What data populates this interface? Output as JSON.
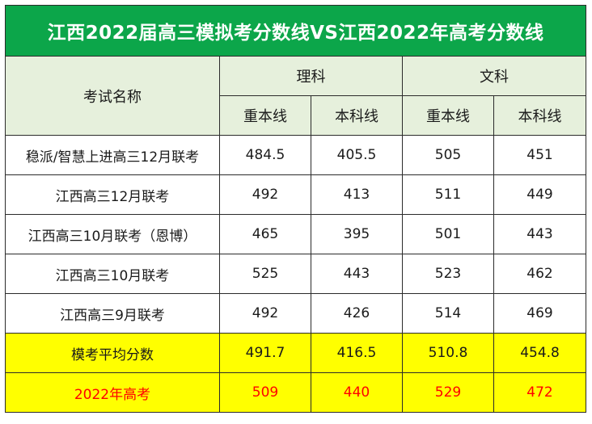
{
  "title": "江西2022届高三模拟考分数线VS江西2022年高考分数线",
  "header": {
    "exam_name": "考试名称",
    "science": "理科",
    "liberal_arts": "文科",
    "tier1": "重本线",
    "tier2": "本科线"
  },
  "rows": [
    {
      "name": "稳派/智慧上进高三12月联考",
      "sci_tier1": "484.5",
      "sci_tier2": "405.5",
      "lib_tier1": "505",
      "lib_tier2": "451"
    },
    {
      "name": "江西高三12月联考",
      "sci_tier1": "492",
      "sci_tier2": "413",
      "lib_tier1": "511",
      "lib_tier2": "449"
    },
    {
      "name": "江西高三10月联考（恩博）",
      "sci_tier1": "465",
      "sci_tier2": "395",
      "lib_tier1": "501",
      "lib_tier2": "443"
    },
    {
      "name": "江西高三10月联考",
      "sci_tier1": "525",
      "sci_tier2": "443",
      "lib_tier1": "523",
      "lib_tier2": "462"
    },
    {
      "name": "江西高三9月联考",
      "sci_tier1": "492",
      "sci_tier2": "426",
      "lib_tier1": "514",
      "lib_tier2": "469"
    }
  ],
  "average": {
    "name": "模考平均分数",
    "sci_tier1": "491.7",
    "sci_tier2": "416.5",
    "lib_tier1": "510.8",
    "lib_tier2": "454.8"
  },
  "actual": {
    "name": "2022年高考",
    "sci_tier1": "509",
    "sci_tier2": "440",
    "lib_tier1": "529",
    "lib_tier2": "472"
  },
  "colors": {
    "title_bg": "#0ca64a",
    "header_bg": "#e6f0dc",
    "highlight_bg": "#ffff00",
    "actual_text": "#ff0000"
  }
}
